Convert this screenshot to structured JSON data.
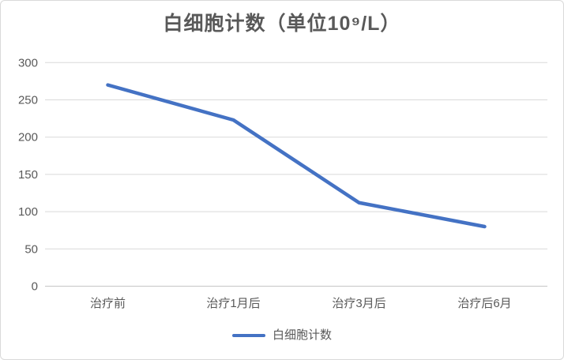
{
  "window": {
    "background": "#FFFFFF",
    "border_color": "#D9D9D9"
  },
  "chart_data": {
    "type": "line",
    "title": "白细胞计数（单位10⁹/L）",
    "categories": [
      "治疗前",
      "治疗1月后",
      "治疗3月后",
      "治疗后6月"
    ],
    "series": [
      {
        "name": "白细胞计数",
        "values": [
          270,
          223,
          112,
          80
        ]
      }
    ],
    "xlabel": "",
    "ylabel": "",
    "ylim": [
      0,
      300
    ],
    "y_ticks": [
      0,
      50,
      100,
      150,
      200,
      250,
      300
    ],
    "grid": "horizontal-only",
    "legend_position": "bottom",
    "colors": {
      "line": "#4472C4",
      "grid": "#D9D9D9",
      "axis": "#C6C6C6",
      "text": "#595959",
      "title": "#595959"
    }
  }
}
